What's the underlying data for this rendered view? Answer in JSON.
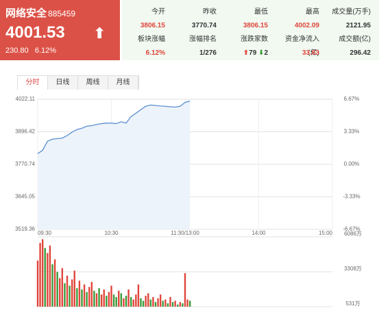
{
  "header": {
    "name": "网络安全",
    "code": "885459",
    "price": "4001.53",
    "change": "230.80",
    "change_pct": "6.12%"
  },
  "stats": [
    [
      {
        "label": "今开",
        "value": "3806.15"
      },
      {
        "label": "昨收",
        "value": "3770.74"
      },
      {
        "label": "最低",
        "value": "3806.15"
      },
      {
        "label": "最高",
        "value": "4002.09"
      },
      {
        "label": "成交量(万手)",
        "value": "2121.95"
      }
    ],
    [
      {
        "label": "板块涨幅",
        "value": "6.12%"
      },
      {
        "label": "涨幅排名",
        "value": "1/276"
      },
      {
        "label": "涨跌家数",
        "up": "79",
        "down": "2"
      },
      {
        "label": "资金净流入(亿)",
        "value": "33.63"
      },
      {
        "label": "成交额(亿)",
        "value": "296.42"
      }
    ]
  ],
  "tabs": [
    "分时",
    "日线",
    "周线",
    "月线"
  ],
  "chart_data": [
    {
      "type": "line",
      "color": "#5b8fd0",
      "area_color": "#edf3fb",
      "grid": true,
      "x": [
        0,
        4,
        8,
        12,
        16,
        20,
        24,
        28,
        32,
        36,
        40,
        44,
        48,
        52,
        56,
        60,
        64,
        68,
        72,
        76,
        80,
        84,
        88,
        92,
        96,
        100,
        104,
        108,
        112,
        116,
        120,
        124
      ],
      "values": [
        3812,
        3825,
        3860,
        3868,
        3870,
        3872,
        3882,
        3895,
        3905,
        3910,
        3918,
        3920,
        3925,
        3928,
        3930,
        3930,
        3928,
        3935,
        3930,
        3955,
        3968,
        3982,
        3995,
        4000,
        3998,
        3996,
        3995,
        3993,
        3992,
        3995,
        4010,
        4015
      ],
      "xlim": [
        0,
        240
      ],
      "xticks": [
        {
          "value": 0,
          "label": "09:30"
        },
        {
          "value": 60,
          "label": "10:30"
        },
        {
          "value": 120,
          "label": "11:30/13:00"
        },
        {
          "value": 180,
          "label": "14:00"
        },
        {
          "value": 240,
          "label": "15:00"
        }
      ],
      "ylim": [
        3519.36,
        4022.11
      ],
      "yticks": [
        3519.36,
        3645.05,
        3770.74,
        3896.42,
        4022.11
      ],
      "y2lim": [
        -6.67,
        6.67
      ],
      "y2ticks": [
        {
          "value": -6.67,
          "label": "-6.67%"
        },
        {
          "value": -3.33,
          "label": "-3.33%"
        },
        {
          "value": 0,
          "label": "0.00%"
        },
        {
          "value": 3.33,
          "label": "3.33%"
        },
        {
          "value": 6.67,
          "label": "6.67%"
        }
      ]
    },
    {
      "type": "bar",
      "grid": true,
      "x": [
        0,
        2,
        4,
        6,
        8,
        10,
        12,
        14,
        16,
        18,
        20,
        22,
        24,
        26,
        28,
        30,
        32,
        34,
        36,
        38,
        40,
        42,
        44,
        46,
        48,
        50,
        52,
        54,
        56,
        58,
        60,
        62,
        64,
        66,
        68,
        70,
        72,
        74,
        76,
        78,
        80,
        82,
        84,
        86,
        88,
        90,
        92,
        94,
        96,
        98,
        100,
        102,
        104,
        106,
        108,
        110,
        112,
        114,
        116,
        118,
        120,
        122,
        124
      ],
      "values": [
        4200,
        5600,
        5900,
        5200,
        4800,
        5400,
        3900,
        4300,
        3300,
        2800,
        3600,
        2400,
        3000,
        2200,
        2700,
        3400,
        2000,
        2600,
        1900,
        2300,
        1700,
        2100,
        2500,
        1800,
        1600,
        2000,
        1500,
        1900,
        1400,
        1700,
        2200,
        1500,
        1300,
        1800,
        1600,
        1200,
        1400,
        1900,
        1300,
        1100,
        1500,
        2300,
        1200,
        1000,
        1400,
        1600,
        1100,
        1300,
        900,
        1200,
        1500,
        1000,
        1100,
        800,
        1300,
        900,
        1000,
        700,
        900,
        800,
        3200,
        1100,
        1000
      ],
      "colors": [
        "#e0453a",
        "#e0453a",
        "#e0453a",
        "#3a9a3a",
        "#e0453a",
        "#e0453a",
        "#3a9a3a",
        "#e0453a",
        "#3a9a3a",
        "#e0453a",
        "#e0453a",
        "#3a9a3a",
        "#e0453a",
        "#3a9a3a",
        "#e0453a",
        "#e0453a",
        "#3a9a3a",
        "#e0453a",
        "#3a9a3a",
        "#e0453a",
        "#3a9a3a",
        "#e0453a",
        "#e0453a",
        "#3a9a3a",
        "#e0453a",
        "#3a9a3a",
        "#e0453a",
        "#e0453a",
        "#3a9a3a",
        "#e0453a",
        "#e0453a",
        "#3a9a3a",
        "#3a9a3a",
        "#e0453a",
        "#3a9a3a",
        "#e0453a",
        "#3a9a3a",
        "#e0453a",
        "#3a9a3a",
        "#e0453a",
        "#e0453a",
        "#e0453a",
        "#3a9a3a",
        "#3a9a3a",
        "#e0453a",
        "#e0453a",
        "#3a9a3a",
        "#e0453a",
        "#3a9a3a",
        "#e0453a",
        "#e0453a",
        "#3a9a3a",
        "#e0453a",
        "#3a9a3a",
        "#e0453a",
        "#3a9a3a",
        "#e0453a",
        "#3a9a3a",
        "#e0453a",
        "#3a9a3a",
        "#e0453a",
        "#e0453a",
        "#3a9a3a"
      ],
      "xlim": [
        0,
        240
      ],
      "ylim": [
        531,
        6086
      ],
      "yticks": [
        {
          "value": 531,
          "label": "531万"
        },
        {
          "value": 3308,
          "label": "3308万"
        },
        {
          "value": 6086,
          "label": "6086万"
        }
      ]
    }
  ]
}
